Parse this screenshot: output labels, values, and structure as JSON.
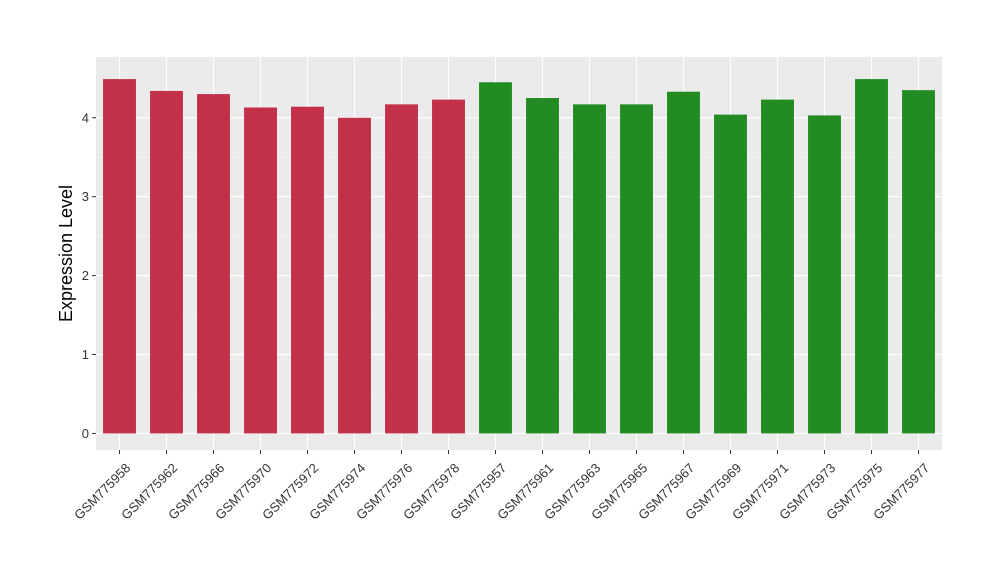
{
  "chart_data": {
    "type": "bar",
    "ylabel": "Expression Level",
    "xlabel": "",
    "ylim": [
      -0.21,
      4.77
    ],
    "yticks": [
      0,
      1,
      2,
      3,
      4
    ],
    "grid": true,
    "panel_background": "#EBEBEB",
    "categories": [
      "GSM775958",
      "GSM775962",
      "GSM775966",
      "GSM775970",
      "GSM775972",
      "GSM775974",
      "GSM775976",
      "GSM775978",
      "GSM775957",
      "GSM775961",
      "GSM775963",
      "GSM775965",
      "GSM775967",
      "GSM775969",
      "GSM775971",
      "GSM775973",
      "GSM775975",
      "GSM775977"
    ],
    "values": [
      4.49,
      4.34,
      4.3,
      4.13,
      4.14,
      4.0,
      4.17,
      4.23,
      4.45,
      4.25,
      4.17,
      4.17,
      4.33,
      4.04,
      4.23,
      4.03,
      4.49,
      4.35
    ],
    "group_colors": [
      "#C3304A",
      "#C3304A",
      "#C3304A",
      "#C3304A",
      "#C3304A",
      "#C3304A",
      "#C3304A",
      "#C3304A",
      "#228B22",
      "#228B22",
      "#228B22",
      "#228B22",
      "#228B22",
      "#228B22",
      "#228B22",
      "#228B22",
      "#228B22",
      "#228B22"
    ]
  }
}
